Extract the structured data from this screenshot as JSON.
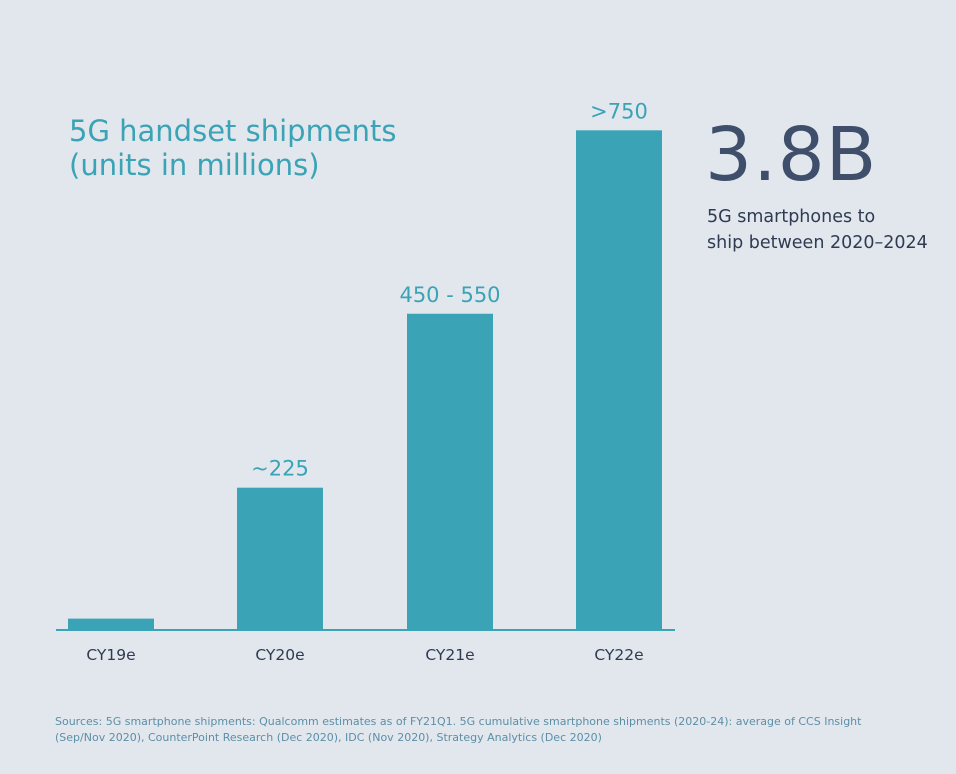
{
  "title": {
    "line1": "5G handset shipments",
    "line2": "(units in millions)"
  },
  "stat": {
    "value": "3.8B",
    "caption_line1": "5G smartphones to",
    "caption_line2": "ship between 2020–2024"
  },
  "sources": {
    "line1": "Sources: 5G smartphone shipments: Qualcomm estimates as of FY21Q1. 5G cumulative smartphone shipments (2020-24): average of CCS Insight",
    "line2": "(Sep/Nov 2020), CounterPoint Research (Dec 2020), IDC (Nov 2020), Strategy Analytics (Dec 2020)"
  },
  "colors": {
    "bar": "#3aa3b5",
    "axis": "#3aa3b5",
    "label": "#3aa3b5",
    "tick": "#2f3b52",
    "background": "#e2e7ee"
  },
  "chart_data": {
    "type": "bar",
    "title": "5G handset shipments (units in millions)",
    "categories": [
      "CY19e",
      "CY20e",
      "CY21e",
      "CY22e"
    ],
    "values": [
      18,
      225,
      500,
      790
    ],
    "data_labels": [
      "",
      "~225",
      "450 - 550",
      ">750"
    ],
    "ylim": [
      0,
      800
    ],
    "grid": false,
    "legend": "none"
  }
}
